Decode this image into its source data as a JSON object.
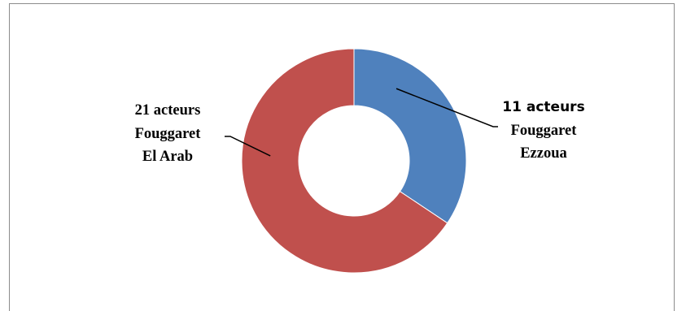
{
  "chart_data": {
    "type": "pie",
    "subtype": "donut",
    "series": [
      {
        "values": [
          11,
          21
        ],
        "categories": [
          "Fouggaret Ezzoua",
          "Fouggaret El Arab"
        ],
        "colors": [
          "#4f81bd",
          "#c0504d"
        ]
      }
    ],
    "data_labels": [
      [
        "11 acteurs",
        "Fouggaret",
        "Ezzoua"
      ],
      [
        "21 acteurs",
        "Fouggaret",
        "El Arab"
      ]
    ],
    "legend": "none",
    "title": ""
  }
}
